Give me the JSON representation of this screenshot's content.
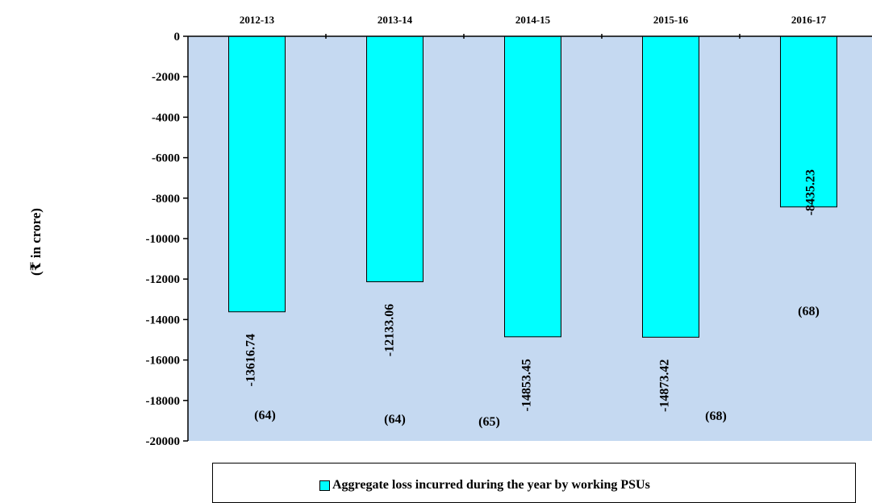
{
  "chart_data": {
    "type": "bar",
    "categories": [
      "2012-13",
      "2013-14",
      "2014-15",
      "2015-16",
      "2016-17"
    ],
    "series": [
      {
        "name": "Aggregate loss incurred during the year by working PSUs",
        "values": [
          -13616.74,
          -12133.06,
          -14853.45,
          -14873.42,
          -8435.23
        ],
        "value_labels": [
          "-13616.74",
          "-12133.06",
          "-14853.45",
          "-14873.42",
          "-8435.23"
        ],
        "count_labels": [
          "(64)",
          "(64)",
          "(65)",
          "(68)",
          "(68)"
        ]
      }
    ],
    "ylabel": "(₹ in crore)",
    "xlabel": "",
    "ylim": [
      -20000,
      0
    ],
    "yticks": [
      "0",
      "-2000",
      "-4000",
      "-6000",
      "-8000",
      "-10000",
      "-12000",
      "-14000",
      "-16000",
      "-18000",
      "-20000"
    ],
    "ytick_values": [
      0,
      -2000,
      -4000,
      -6000,
      -8000,
      -10000,
      -12000,
      -14000,
      -16000,
      -18000,
      -20000
    ],
    "x_axis_position": "top",
    "legend_position": "bottom",
    "grid": false,
    "colors": {
      "bar": "#00ffff",
      "plot_background": "#c5d9f1",
      "bar_border": "#000000"
    }
  }
}
